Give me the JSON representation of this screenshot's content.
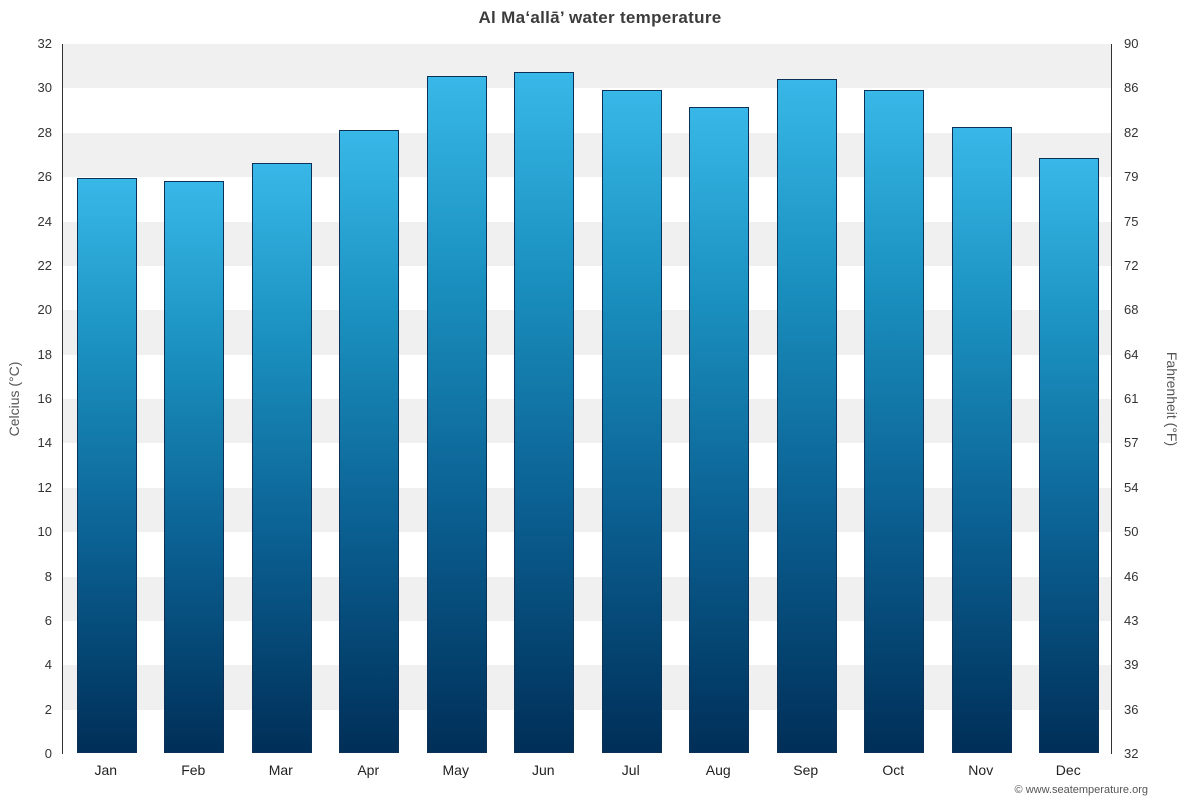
{
  "chart_data": {
    "type": "bar",
    "title": "Al Maʻallā’ water temperature",
    "ylabel_left": "Celcius (°C)",
    "ylabel_right": "Fahrenheit (°F)",
    "categories": [
      "Jan",
      "Feb",
      "Mar",
      "Apr",
      "May",
      "Jun",
      "Jul",
      "Aug",
      "Sep",
      "Oct",
      "Nov",
      "Dec"
    ],
    "values": [
      25.9,
      25.8,
      26.6,
      28.1,
      30.5,
      30.7,
      29.9,
      29.1,
      30.4,
      29.9,
      28.2,
      26.8
    ],
    "unit": "°C",
    "ylim": [
      0,
      32
    ],
    "ytick_step": 2,
    "yticks_celsius": [
      0,
      2,
      4,
      6,
      8,
      10,
      12,
      14,
      16,
      18,
      20,
      22,
      24,
      26,
      28,
      30,
      32
    ],
    "yticks_fahrenheit": [
      "32",
      "36",
      "39",
      "43",
      "46",
      "50",
      "54",
      "57",
      "61",
      "64",
      "68",
      "72",
      "75",
      "79",
      "82",
      "86",
      "90"
    ],
    "grid": "alternating horizontal bands",
    "legend": "none",
    "source": "© www.seatemperature.org",
    "colors": {
      "bar_top": "#38b8e8",
      "bar_bottom": "#002f58",
      "bar_border": "#0d3156",
      "band": "#f0f0f0",
      "axis": "#333333"
    }
  }
}
